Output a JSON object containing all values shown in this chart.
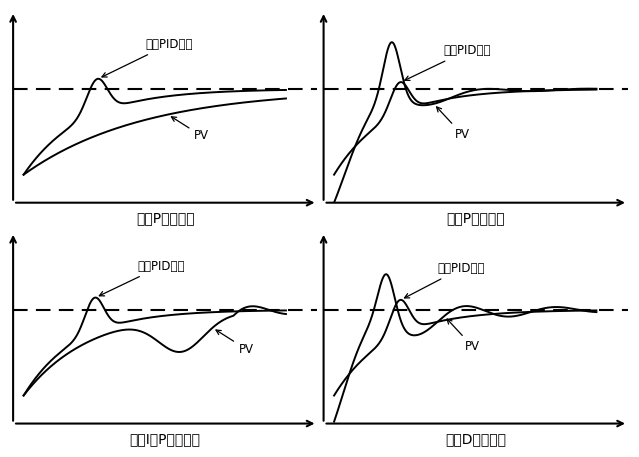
{
  "subplots": [
    {
      "title": "减少P的设定值",
      "label_ideal": "理想PID控制",
      "label_pv": "PV",
      "setpoint": 0.55
    },
    {
      "title": "增加P的设定值",
      "label_ideal": "理想PID控制",
      "label_pv": "PV",
      "setpoint": 0.55
    },
    {
      "title": "增加I或P的设定值",
      "label_ideal": "理想PID控制",
      "label_pv": "PV",
      "setpoint": 0.55
    },
    {
      "title": "减少D的设定值",
      "label_ideal": "理想PID控制",
      "label_pv": "PV",
      "setpoint": 0.55
    }
  ],
  "background_color": "#ffffff",
  "font_size_label": 9,
  "font_size_title": 10,
  "font_size_annot": 8.5
}
